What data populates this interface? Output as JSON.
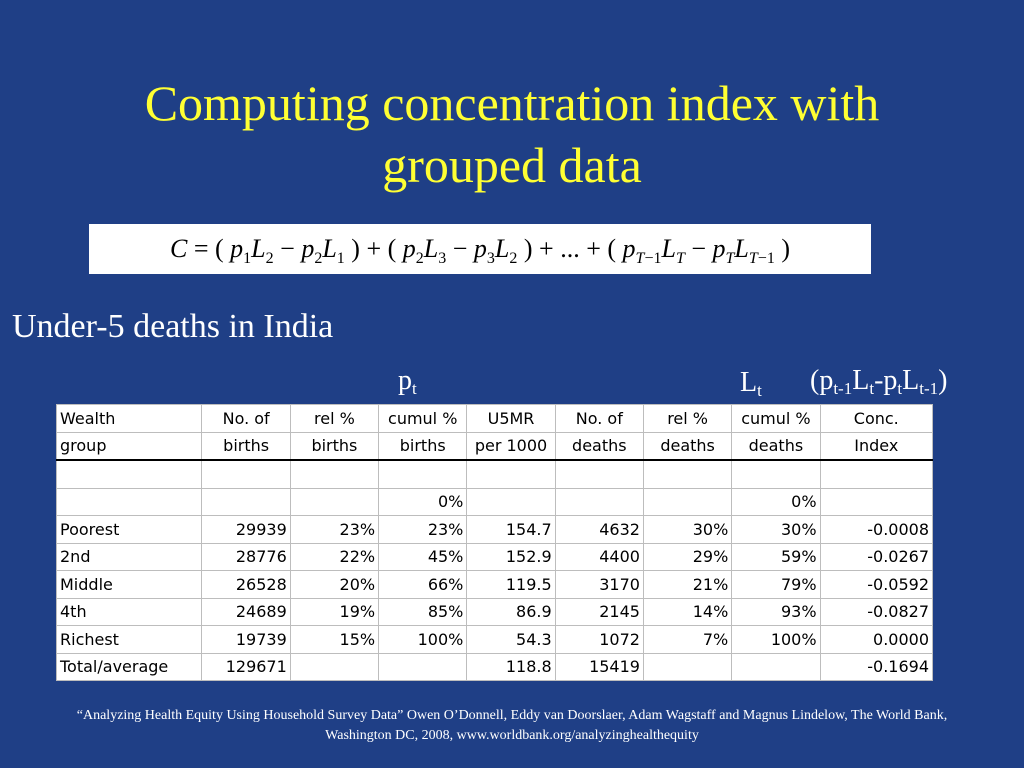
{
  "title_line1": "Computing concentration index with",
  "title_line2": "grouped data",
  "subtitle": "Under-5 deaths in India",
  "labels": {
    "p": "p",
    "p_sub": "t",
    "L": "L",
    "L_sub": "t",
    "ratio": "(p t-1 L t -p t L t-1 )"
  },
  "header1": [
    "Wealth",
    "No. of",
    "rel %",
    "cumul %",
    "U5MR",
    "No. of",
    "rel %",
    "cumul %",
    "Conc."
  ],
  "header2": [
    "group",
    "births",
    "births",
    "births",
    "per 1000",
    "deaths",
    "deaths",
    "deaths",
    "Index"
  ],
  "zero_row": [
    "",
    "",
    "",
    "0%",
    "",
    "",
    "",
    "0%",
    ""
  ],
  "rows": [
    [
      "Poorest",
      "29939",
      "23%",
      "23%",
      "154.7",
      "4632",
      "30%",
      "30%",
      "-0.0008"
    ],
    [
      "2nd",
      "28776",
      "22%",
      "45%",
      "152.9",
      "4400",
      "29%",
      "59%",
      "-0.0267"
    ],
    [
      "Middle",
      "26528",
      "20%",
      "66%",
      "119.5",
      "3170",
      "21%",
      "79%",
      "-0.0592"
    ],
    [
      "4th",
      "24689",
      "19%",
      "85%",
      "86.9",
      "2145",
      "14%",
      "93%",
      "-0.0827"
    ],
    [
      "Richest",
      "19739",
      "15%",
      "100%",
      "54.3",
      "1072",
      "7%",
      "100%",
      "0.0000"
    ],
    [
      "Total/average",
      "129671",
      "",
      "",
      "118.8",
      "15419",
      "",
      "",
      "-0.1694"
    ]
  ],
  "footer": "“Analyzing Health Equity Using Household Survey Data” Owen O’Donnell, Eddy van Doorslaer, Adam Wagstaff and Magnus Lindelow, The World Bank, Washington DC, 2008, www.worldbank.org/analyzinghealthequity"
}
